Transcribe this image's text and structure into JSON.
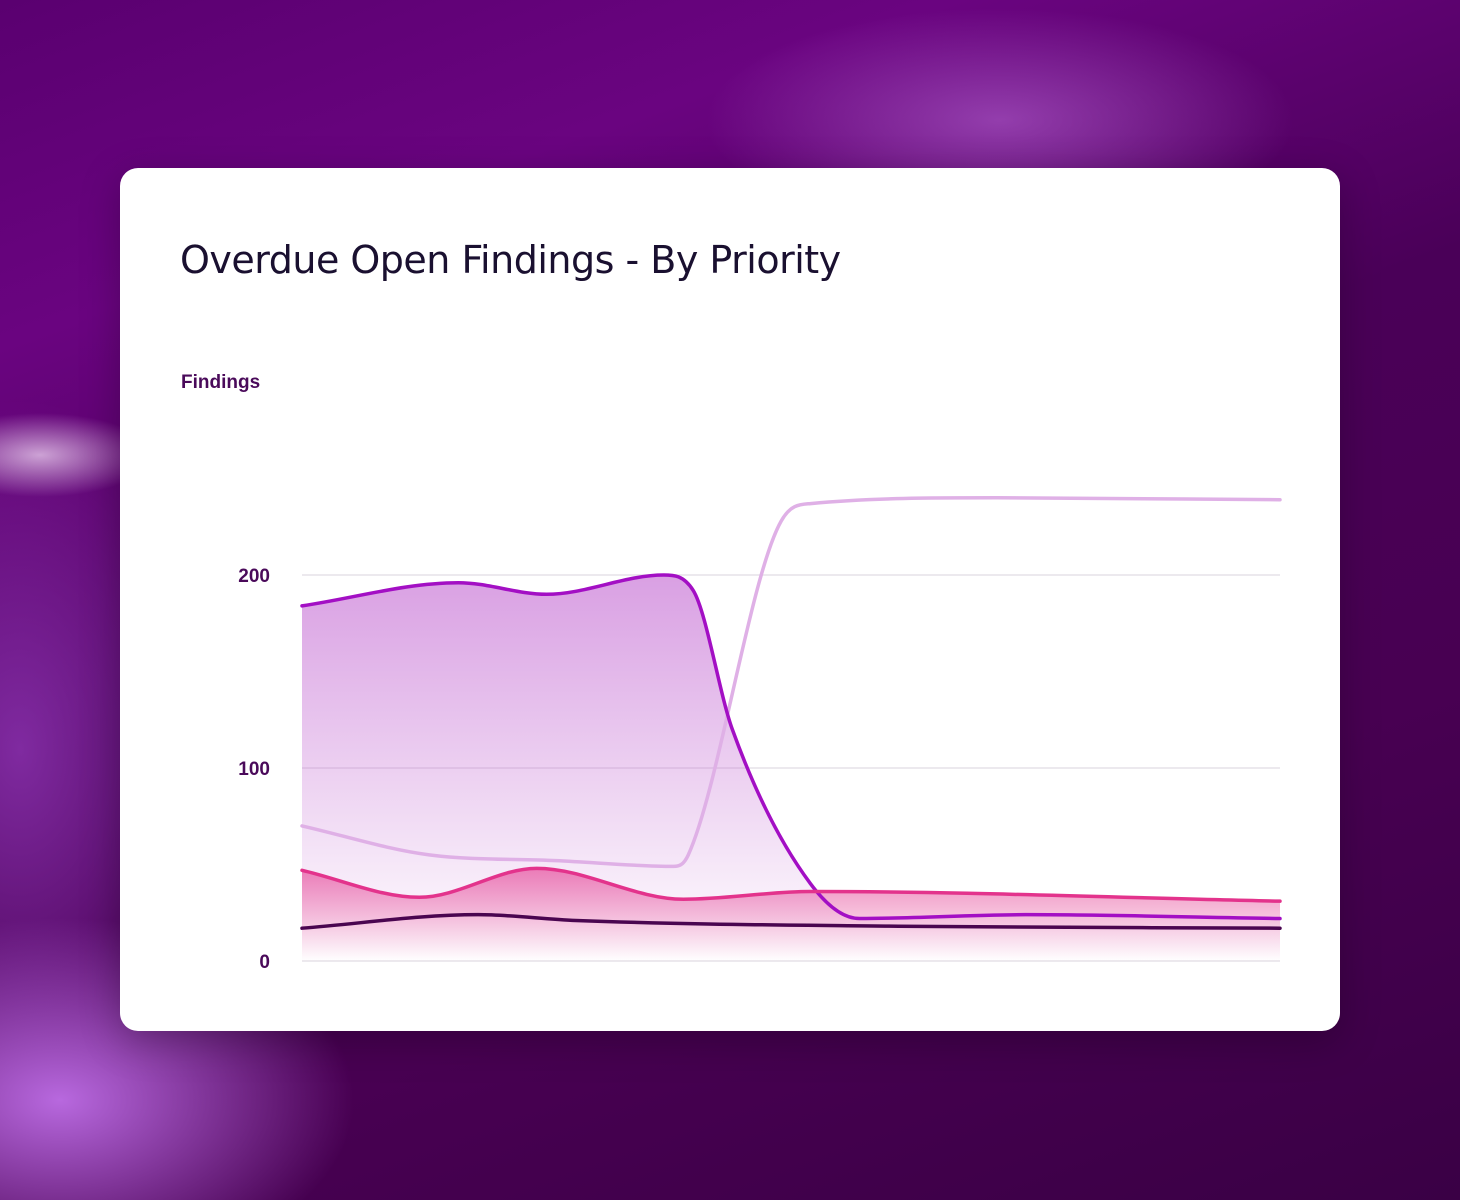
{
  "chart_data": {
    "type": "area",
    "title": "Overdue Open Findings - By Priority",
    "xlabel": "",
    "ylabel": "Findings",
    "xlim": [
      0,
      100
    ],
    "ylim": [
      0,
      200
    ],
    "yticks": [
      0,
      100,
      200
    ],
    "grid": true,
    "series": [
      {
        "name": "series-lavender",
        "color": "#dfb0e6",
        "fill": false,
        "points": [
          [
            0,
            70
          ],
          [
            13,
            55
          ],
          [
            26,
            52
          ],
          [
            38,
            49
          ],
          [
            39.5,
            55
          ],
          [
            49,
            228
          ],
          [
            52,
            237
          ],
          [
            71,
            240
          ],
          [
            100,
            239
          ]
        ]
      },
      {
        "name": "series-purple",
        "color": "#a30fc4",
        "fill": true,
        "fillColor": "#c060d0",
        "points": [
          [
            0,
            184
          ],
          [
            16,
            196
          ],
          [
            25,
            190
          ],
          [
            37,
            200
          ],
          [
            40,
            192
          ],
          [
            44,
            120
          ],
          [
            52,
            40
          ],
          [
            57,
            22
          ],
          [
            74,
            24
          ],
          [
            100,
            22
          ]
        ]
      },
      {
        "name": "series-pink",
        "color": "#e3338c",
        "fill": true,
        "fillColor": "#e3338c",
        "points": [
          [
            0,
            47
          ],
          [
            12,
            33
          ],
          [
            24,
            48
          ],
          [
            39,
            32
          ],
          [
            52,
            36
          ],
          [
            100,
            31
          ]
        ]
      },
      {
        "name": "series-dark",
        "color": "#4a0550",
        "fill": false,
        "points": [
          [
            0,
            17
          ],
          [
            18,
            24
          ],
          [
            28,
            21
          ],
          [
            61,
            18
          ],
          [
            100,
            17
          ]
        ]
      }
    ]
  }
}
